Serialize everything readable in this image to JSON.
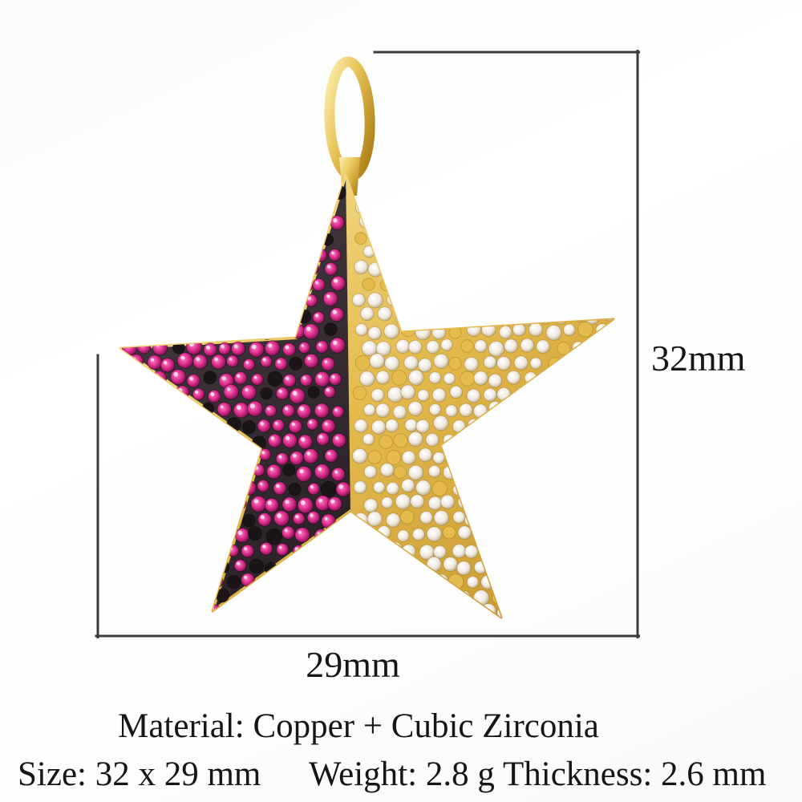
{
  "dimensions": {
    "height_label": "32mm",
    "width_label": "29mm"
  },
  "details": {
    "material": "Material: Copper + Cubic Zirconia",
    "size": "Size: 32 x 29 mm",
    "weight": "Weight: 2.8 g",
    "thickness": "Thickness: 2.6 mm"
  },
  "colors": {
    "text": "#161616",
    "dimension_line": "#3a3a3a",
    "gold_light": "#f9e9a5",
    "gold": "#e5bb4d",
    "gold_deep": "#c3922a",
    "gold_edge": "#c79b2f",
    "bail_light": "#fdf0b0",
    "bail_mid": "#e8c257",
    "bail_deep": "#aa7d15",
    "dark_metal_light": "#4a3f45",
    "dark_metal_deep": "#171215",
    "bead_black": "#1c1518",
    "pink_light": "#ff7cc4",
    "pink": "#d92a8a",
    "pink_deep": "#77104d",
    "white_stone": "#ffffff",
    "white_stone_mid": "#efe9df",
    "white_stone_deep": "#b3a077"
  }
}
